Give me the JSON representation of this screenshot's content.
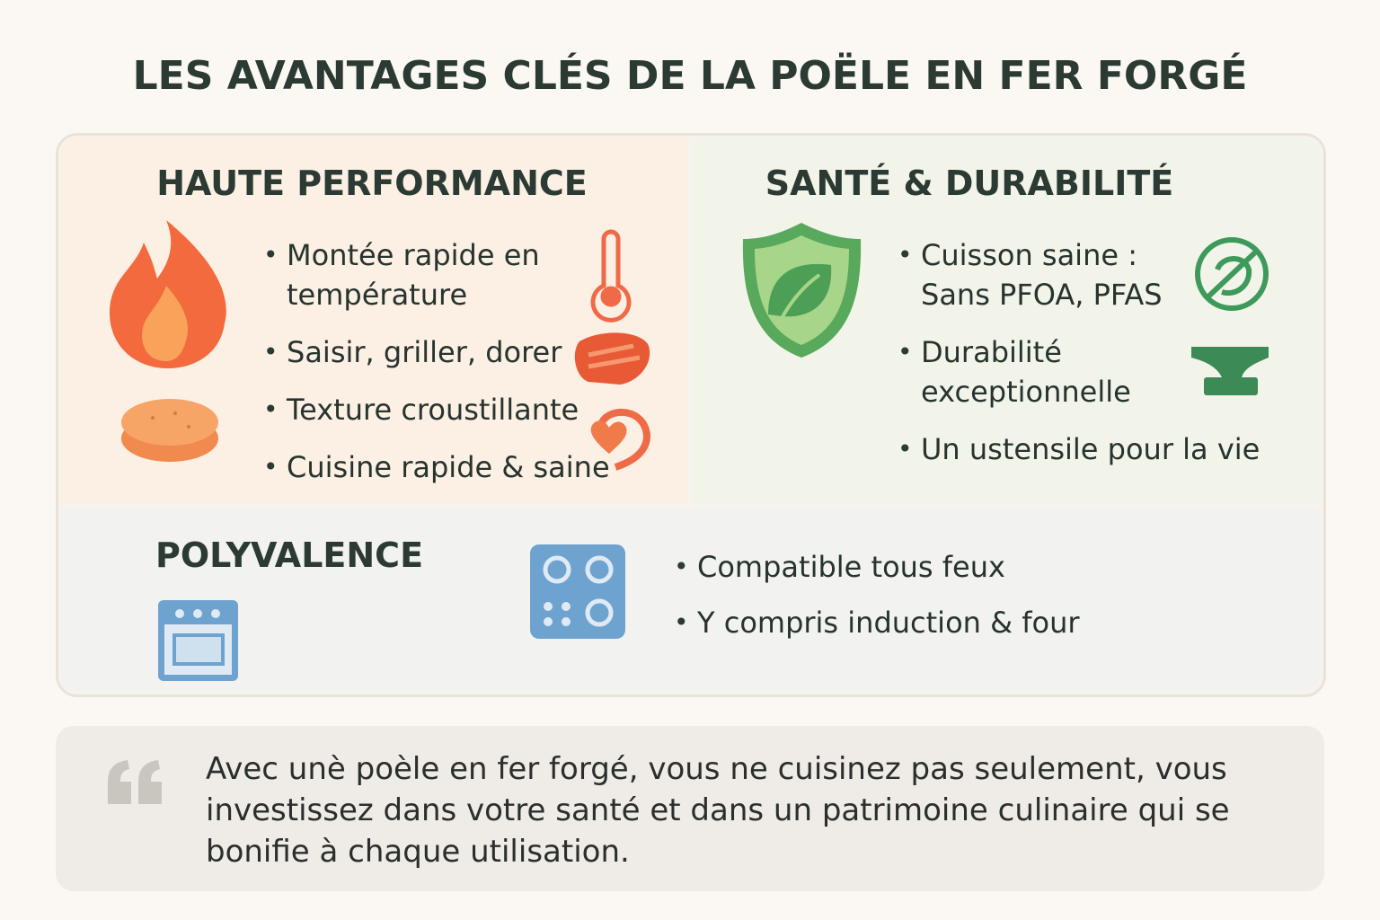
{
  "header": {
    "title": "LES AVANTAGES CLÉS DE LA POËLE EN FER FORGÉ"
  },
  "sections": [
    {
      "title": "HAUTE PERFORMANCE",
      "items": [
        [
          "Montée rapide en",
          "température"
        ],
        [
          "Saisir, griller, dorer"
        ],
        [
          "Texture croustillante"
        ],
        [
          "Cuisine rapide & saine"
        ]
      ]
    },
    {
      "title": "SANTÉ & DURABILITÉ",
      "items": [
        [
          "Cuisson saine :",
          "Sans PFOA, PFAS"
        ],
        [
          "Durabilité",
          "exceptionnelle"
        ],
        [
          "Un ustensile pour la vie"
        ]
      ]
    },
    {
      "title": "POLYVALENCE",
      "items": [
        [
          "Compatible tous feux"
        ],
        [
          "Y compris induction & four"
        ]
      ]
    }
  ],
  "quote": {
    "lines": [
      "Avec unè poèle en fer forgé, vous ne cuisinez pas seulement, vous",
      "investissez dans votre santé et dans un patrimoine culinaire qui se",
      "bonifie à chaque utilisation."
    ]
  }
}
